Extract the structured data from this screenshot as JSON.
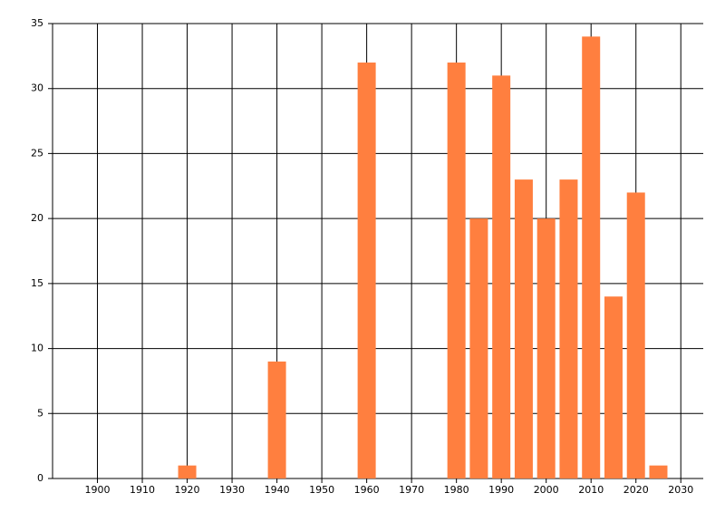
{
  "chart_data": {
    "type": "bar",
    "x": [
      1920,
      1940,
      1960,
      1980,
      1985,
      1990,
      1995,
      2000,
      2005,
      2010,
      2015,
      2020,
      2025
    ],
    "values": [
      1,
      9,
      32,
      32,
      20,
      31,
      23,
      20,
      23,
      34,
      14,
      22,
      1
    ],
    "color": "#ff7f3f",
    "xlim": [
      1890,
      2035
    ],
    "xticks": [
      1900,
      1910,
      1920,
      1930,
      1940,
      1950,
      1960,
      1970,
      1980,
      1990,
      2000,
      2010,
      2020,
      2030
    ],
    "ylim": [
      0,
      35
    ],
    "yticks": [
      0,
      5,
      10,
      15,
      20,
      25,
      30,
      35
    ],
    "grid": true
  }
}
